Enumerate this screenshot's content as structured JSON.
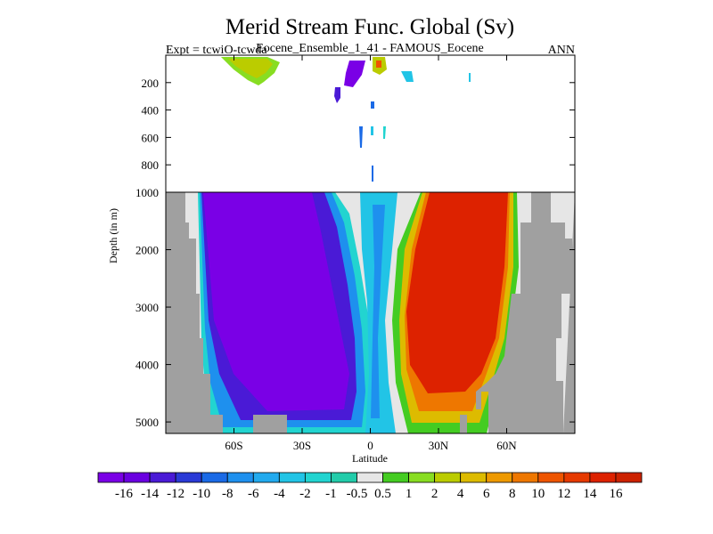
{
  "chart_data": {
    "type": "heatmap",
    "title": "Merid Stream Func. Global (Sv)",
    "subtitle_left": "Expt = tcwiO-tcwda",
    "subtitle_center": "Eocene_Ensemble_1_41 - FAMOUS_Eocene",
    "subtitle_right": "ANN",
    "xlabel": "Latitude",
    "ylabel": "Depth (in m)",
    "x_ticks": [
      "60S",
      "30S",
      "0",
      "30N",
      "60N"
    ],
    "x_tick_values": [
      -60,
      -30,
      0,
      30,
      60
    ],
    "xlim": [
      -90,
      90
    ],
    "y_ticks_upper": [
      "200",
      "400",
      "600",
      "800",
      "1000"
    ],
    "y_ticks_lower": [
      "2000",
      "3000",
      "4000",
      "5000"
    ],
    "y_tick_values_upper": [
      200,
      400,
      600,
      800,
      1000
    ],
    "y_tick_values_lower": [
      2000,
      3000,
      4000,
      5000
    ],
    "ylim_upper": [
      0,
      1000
    ],
    "ylim_lower": [
      1000,
      5200
    ],
    "colorbar_labels": [
      "-16",
      "-14",
      "-12",
      "-10",
      "-8",
      "-6",
      "-4",
      "-2",
      "-1",
      "-0.5",
      "0.5",
      "1",
      "2",
      "4",
      "6",
      "8",
      "10",
      "12",
      "14",
      "16"
    ],
    "colorbar_colors": [
      "#7a00e6",
      "#6a00e0",
      "#4a1ad6",
      "#2a3ad6",
      "#1a6ae6",
      "#1e90ee",
      "#22aaee",
      "#22c4e6",
      "#22d4d0",
      "#22ccaa",
      "#e6e6e6",
      "#44cc22",
      "#88dd22",
      "#bbcc00",
      "#ddbb00",
      "#ee9900",
      "#ee7700",
      "#ee5500",
      "#e63a00",
      "#dd2200",
      "#cc2200"
    ],
    "land_color": "#a0a0a0"
  }
}
